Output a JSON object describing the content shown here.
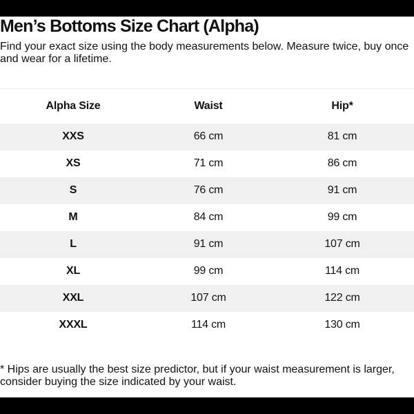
{
  "page": {
    "title": "Men’s Bottoms Size Chart (Alpha)",
    "subtitle_line1": "Find your exact size using the body measurements below. Measure twice, buy once",
    "subtitle_line2": "and wear for a lifetime."
  },
  "table": {
    "columns": [
      "Alpha Size",
      "Waist",
      "Hip*"
    ],
    "rows": [
      {
        "size": "XXS",
        "waist": "66 cm",
        "hip": "81 cm"
      },
      {
        "size": "XS",
        "waist": "71 cm",
        "hip": "86 cm"
      },
      {
        "size": "S",
        "waist": "76 cm",
        "hip": "91 cm"
      },
      {
        "size": "M",
        "waist": "84 cm",
        "hip": "99 cm"
      },
      {
        "size": "L",
        "waist": "91 cm",
        "hip": "107 cm"
      },
      {
        "size": "XL",
        "waist": "99 cm",
        "hip": "114 cm"
      },
      {
        "size": "XXL",
        "waist": "107 cm",
        "hip": "122 cm"
      },
      {
        "size": "XXXL",
        "waist": "114 cm",
        "hip": "130 cm"
      }
    ]
  },
  "footnote": {
    "line1": "* Hips are usually the best size predictor, but if your waist measurement is larger,",
    "line2": "consider buying the size indicated by your waist."
  },
  "colors": {
    "letterbox": "#000000",
    "background": "#ffffff",
    "row_alt_bg": "#f0f0f0",
    "table_top_border": "#ececec",
    "text": "#111111"
  }
}
